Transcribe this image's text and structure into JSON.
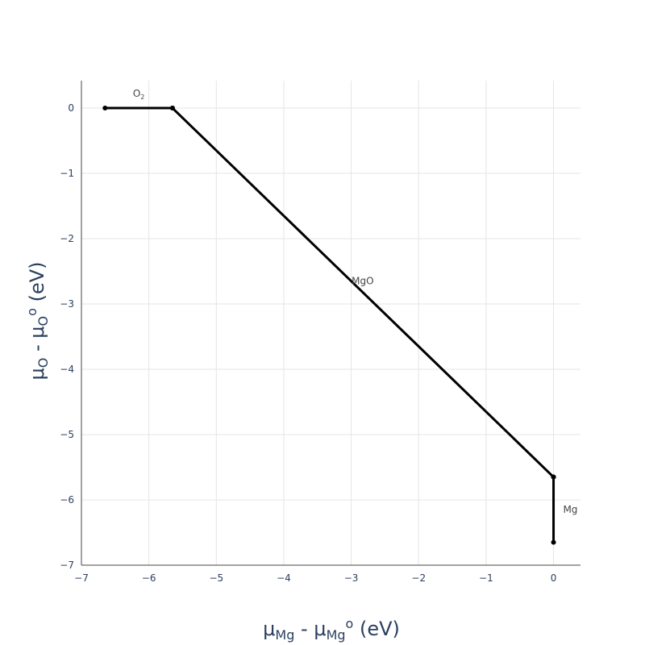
{
  "chart_data": {
    "type": "line",
    "title": "",
    "xlabel": {
      "base": "μ",
      "sub1": "Mg",
      "mid": " - μ",
      "sub2": "Mg",
      "sup": "o",
      "end": " (eV)"
    },
    "ylabel": {
      "base": "μ",
      "sub1": "O",
      "mid": " - μ",
      "sub2": "O",
      "sup": "o",
      "end": " (eV)"
    },
    "xlim": [
      -7,
      0.4
    ],
    "ylim": [
      -7,
      0.42
    ],
    "xticks": [
      -7,
      -6,
      -5,
      -4,
      -3,
      -2,
      -1,
      0
    ],
    "yticks": [
      0,
      -1,
      -2,
      -3,
      -4,
      -5,
      -6,
      -7
    ],
    "grid": true,
    "line_color": "#000000",
    "series": [
      {
        "points": [
          [
            -6.65,
            0
          ],
          [
            -5.65,
            0
          ]
        ]
      },
      {
        "points": [
          [
            -5.65,
            0
          ],
          [
            0,
            -5.65
          ]
        ]
      },
      {
        "points": [
          [
            0,
            -5.65
          ],
          [
            0,
            -6.65
          ]
        ]
      }
    ],
    "annotations": [
      {
        "text": "O",
        "sub": "2",
        "x": -6.15,
        "y": 0.22
      },
      {
        "text": "MgO",
        "sub": "",
        "x": -2.83,
        "y": -2.65
      },
      {
        "text": "Mg",
        "sub": "",
        "x": 0.25,
        "y": -6.15
      }
    ]
  }
}
